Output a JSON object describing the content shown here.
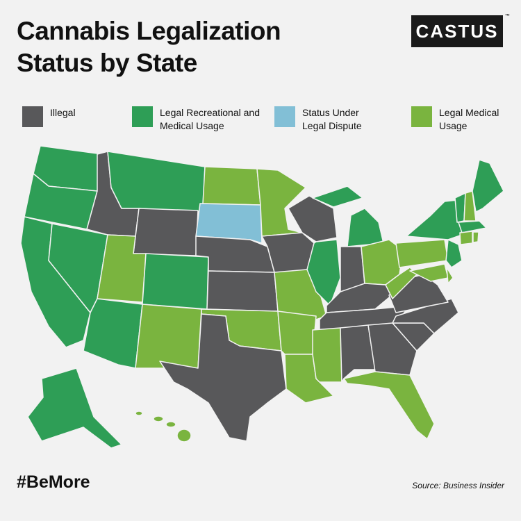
{
  "header": {
    "title": "Cannabis Legalization Status by State",
    "logo": "CASTUS",
    "trademark": "™"
  },
  "legend": [
    {
      "label": "Illegal",
      "color": "#58585a"
    },
    {
      "label": "Legal Recreational and Medical Usage",
      "color": "#2e9e56"
    },
    {
      "label": "Status Under Legal Dispute",
      "color": "#82bfd6"
    },
    {
      "label": "Legal Medical Usage",
      "color": "#7ab43f"
    }
  ],
  "footer": {
    "tag": "#BeMore",
    "source": "Source: Business Insider"
  }
}
